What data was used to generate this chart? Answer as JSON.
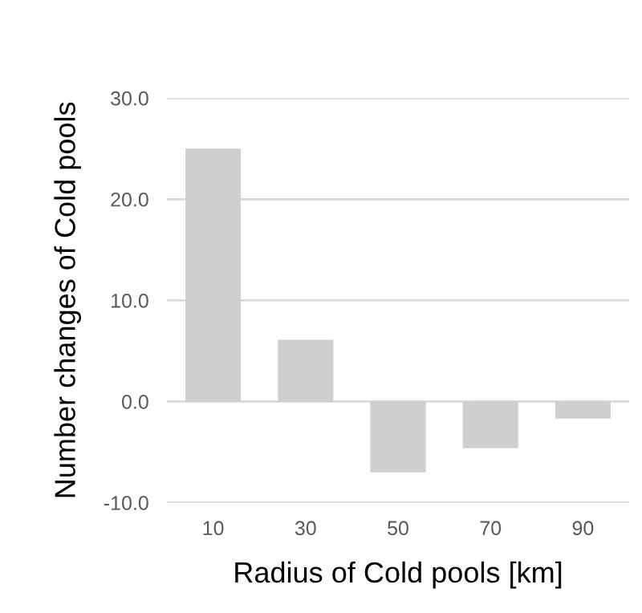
{
  "chart_data": {
    "type": "bar",
    "xlabel": "Radius of Cold pools [km]",
    "ylabel": "Number changes of Cold pools",
    "categories": [
      "10",
      "30",
      "50",
      "70",
      "90"
    ],
    "values": [
      25.0,
      6.1,
      -7.0,
      -4.6,
      -1.7
    ],
    "color": "#d0cece",
    "ylim": [
      -10,
      30
    ],
    "yticks": [
      {
        "value": -10,
        "label": "-10.0"
      },
      {
        "value": 0,
        "label": "0.0"
      },
      {
        "value": 10,
        "label": "10.0"
      },
      {
        "value": 20,
        "label": "20.0"
      },
      {
        "value": 30,
        "label": "30.0"
      }
    ],
    "grid": "y"
  }
}
